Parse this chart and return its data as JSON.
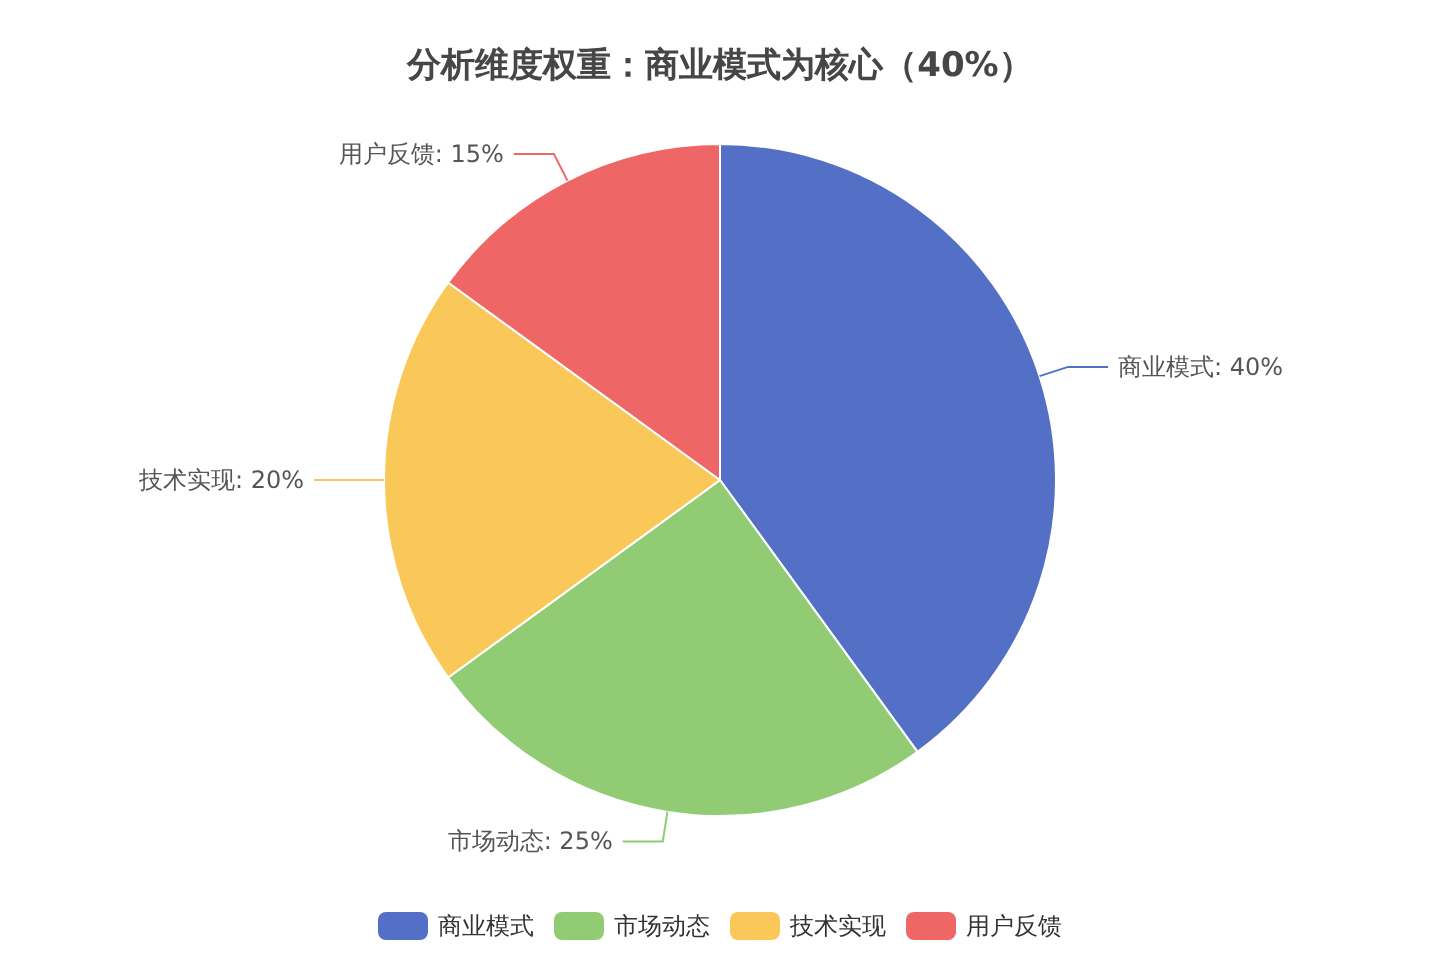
{
  "chart_data": {
    "type": "pie",
    "title": "分析维度权重：商业模式为核心（40%）",
    "categories": [
      "商业模式",
      "市场动态",
      "技术实现",
      "用户反馈"
    ],
    "values": [
      40,
      25,
      20,
      15
    ],
    "value_labels": [
      "商业模式: 40%",
      "市场动态: 25%",
      "技术实现: 20%",
      "用户反馈: 15%"
    ],
    "colors": [
      "#5470c6",
      "#91cc75",
      "#fac858",
      "#ee6666"
    ],
    "legend": "bottom"
  }
}
